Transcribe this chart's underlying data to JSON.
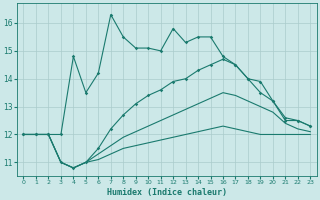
{
  "xlabel": "Humidex (Indice chaleur)",
  "background_color": "#cce8e8",
  "grid_color": "#aacccc",
  "line_color": "#1a7a6e",
  "xlim": [
    -0.5,
    23.5
  ],
  "ylim": [
    10.5,
    16.7
  ],
  "yticks": [
    11,
    12,
    13,
    14,
    15,
    16
  ],
  "xticks": [
    0,
    1,
    2,
    3,
    4,
    5,
    6,
    7,
    8,
    9,
    10,
    11,
    12,
    13,
    14,
    15,
    16,
    17,
    18,
    19,
    20,
    21,
    22,
    23
  ],
  "line1_x": [
    0,
    1,
    2,
    3,
    4,
    5,
    6,
    7,
    8,
    9,
    10,
    11,
    12,
    13,
    14,
    15,
    16,
    17,
    18,
    19,
    20,
    21,
    22,
    23
  ],
  "line1_y": [
    12.0,
    12.0,
    12.0,
    12.0,
    14.8,
    13.5,
    14.2,
    16.3,
    15.5,
    15.1,
    15.1,
    15.0,
    15.8,
    15.3,
    15.5,
    15.5,
    14.8,
    14.5,
    14.0,
    13.9,
    13.2,
    12.5,
    12.5,
    12.3
  ],
  "line2_x": [
    0,
    1,
    2,
    3,
    4,
    5,
    6,
    7,
    8,
    9,
    10,
    11,
    12,
    13,
    14,
    15,
    16,
    17,
    18,
    19,
    20,
    21,
    22,
    23
  ],
  "line2_y": [
    12.0,
    12.0,
    12.0,
    11.0,
    10.8,
    11.0,
    11.5,
    12.2,
    12.7,
    13.1,
    13.4,
    13.6,
    13.9,
    14.0,
    14.3,
    14.5,
    14.7,
    14.5,
    14.0,
    13.5,
    13.2,
    12.6,
    12.5,
    12.3
  ],
  "line3_x": [
    0,
    1,
    2,
    3,
    4,
    5,
    6,
    7,
    8,
    9,
    10,
    11,
    12,
    13,
    14,
    15,
    16,
    17,
    18,
    19,
    20,
    21,
    22,
    23
  ],
  "line3_y": [
    12.0,
    12.0,
    12.0,
    11.0,
    10.8,
    11.0,
    11.3,
    11.6,
    11.9,
    12.1,
    12.3,
    12.5,
    12.7,
    12.9,
    13.1,
    13.3,
    13.5,
    13.4,
    13.2,
    13.0,
    12.8,
    12.4,
    12.2,
    12.1
  ],
  "line4_x": [
    0,
    1,
    2,
    3,
    4,
    5,
    6,
    7,
    8,
    9,
    10,
    11,
    12,
    13,
    14,
    15,
    16,
    17,
    18,
    19,
    20,
    21,
    22,
    23
  ],
  "line4_y": [
    12.0,
    12.0,
    12.0,
    11.0,
    10.8,
    11.0,
    11.1,
    11.3,
    11.5,
    11.6,
    11.7,
    11.8,
    11.9,
    12.0,
    12.1,
    12.2,
    12.3,
    12.2,
    12.1,
    12.0,
    12.0,
    12.0,
    12.0,
    12.0
  ]
}
